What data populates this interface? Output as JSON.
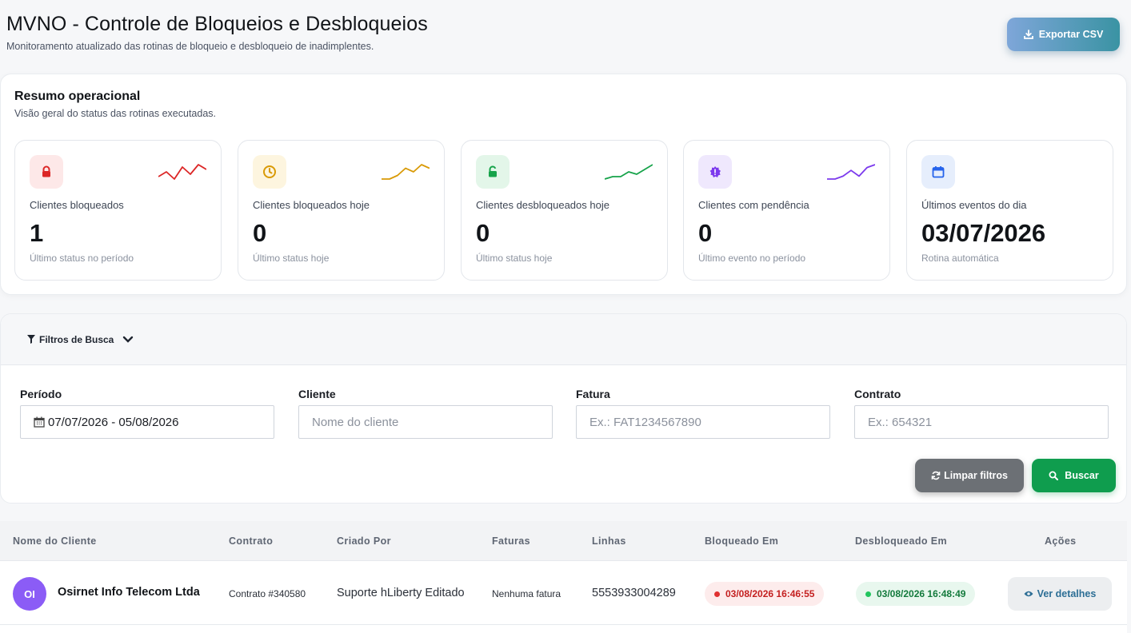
{
  "header": {
    "title": "MVNO - Controle de Bloqueios e Desbloqueios",
    "subtitle": "Monitoramento atualizado das rotinas de bloqueio e desbloqueio de inadimplentes.",
    "export_label": "Exportar CSV",
    "export_icon": "download-icon"
  },
  "summary": {
    "title": "Resumo operacional",
    "subtitle": "Visão geral do status das rotinas executadas.",
    "cards": [
      {
        "label": "Clientes bloqueados",
        "value": "1",
        "note": "Último status no período",
        "icon": "lock-icon",
        "color": "#dc2626",
        "bg": "#fde8e8",
        "spark": [
          6,
          4,
          7,
          2,
          5,
          1,
          3
        ]
      },
      {
        "label": "Clientes bloqueados hoje",
        "value": "0",
        "note": "Último status hoje",
        "icon": "clock-icon",
        "color": "#d99a06",
        "bg": "#fdf5df",
        "spark": [
          6,
          6,
          5,
          3,
          4,
          2,
          3
        ]
      },
      {
        "label": "Clientes desbloqueados hoje",
        "value": "0",
        "note": "Último status hoje",
        "icon": "unlock-icon",
        "color": "#16a34a",
        "bg": "#e3f6e9",
        "spark": [
          7,
          6,
          6,
          4,
          5,
          3,
          1
        ]
      },
      {
        "label": "Clientes com pendência",
        "value": "0",
        "note": "Último evento no período",
        "icon": "alert-badge-icon",
        "color": "#7c3aed",
        "bg": "#efe8fd",
        "spark": [
          6,
          6,
          5,
          3,
          5,
          2,
          1
        ]
      },
      {
        "label": "Últimos eventos do dia",
        "value": "03/07/2026",
        "note": "Rotina automática",
        "icon": "calendar-icon",
        "color": "#2563eb",
        "bg": "#e6eefc"
      }
    ]
  },
  "filters": {
    "toggle_label": "Filtros de Busca",
    "fields": [
      {
        "label": "Período",
        "value": "07/07/2026 - 05/08/2026",
        "placeholder": ""
      },
      {
        "label": "Cliente",
        "value": "",
        "placeholder": "Nome do cliente"
      },
      {
        "label": "Fatura",
        "value": "",
        "placeholder": "Ex.: FAT1234567890"
      },
      {
        "label": "Contrato",
        "value": "",
        "placeholder": "Ex.: 654321"
      }
    ],
    "clear_label": "Limpar filtros",
    "search_label": "Buscar"
  },
  "table": {
    "columns": [
      "Nome do Cliente",
      "Contrato",
      "Criado Por",
      "Faturas",
      "Linhas",
      "Bloqueado Em",
      "Desbloqueado Em",
      "Ações"
    ],
    "rows": [
      {
        "initials": "OI",
        "client": "Osirnet Info Telecom Ltda",
        "contract": "Contrato #340580",
        "created_by": "Suporte hLiberty Editado",
        "invoices": "Nenhuma fatura",
        "lines": "5553933004289",
        "blocked_at": "03/08/2026 16:46:55",
        "unblocked_at": "03/08/2026 16:48:49",
        "action_label": "Ver detalhes"
      }
    ]
  }
}
